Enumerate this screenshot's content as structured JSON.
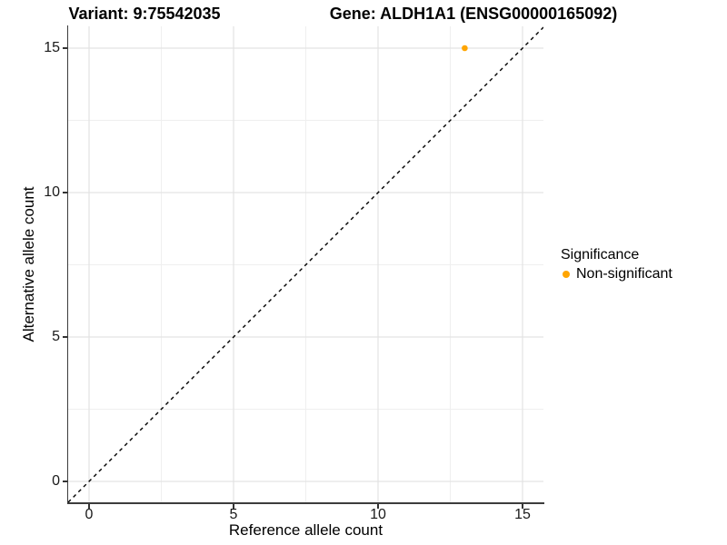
{
  "titles": {
    "variant": "Variant: 9:75542035",
    "gene": "Gene: ALDH1A1 (ENSG00000165092)"
  },
  "chart_data": {
    "type": "scatter",
    "xlabel": "Reference allele count",
    "ylabel": "Alternative allele count",
    "xlim": [
      -0.723,
      15.723
    ],
    "ylim": [
      -0.755,
      15.755
    ],
    "x_ticks": [
      0,
      5,
      10,
      15
    ],
    "y_ticks": [
      0,
      5,
      10,
      15
    ],
    "x_minor_gridlines": [
      2.5,
      7.5,
      12.5
    ],
    "y_minor_gridlines": [
      2.5,
      7.5,
      12.5
    ],
    "grid": true,
    "reference_line": {
      "kind": "identity",
      "style": "dashed",
      "color": "#000000"
    },
    "series": [
      {
        "name": "Non-significant",
        "color": "#FFA500",
        "points": [
          [
            13,
            15
          ]
        ]
      }
    ],
    "legend": {
      "position": "right",
      "title": "Significance",
      "entries": [
        {
          "label": "Non-significant",
          "color": "#FFA500"
        }
      ]
    },
    "colors": {
      "grid_major": "#E3E3E3",
      "grid_minor": "#EFEFEF",
      "axis_line": "#3C3C3C",
      "tick_mark": "#333333"
    }
  }
}
